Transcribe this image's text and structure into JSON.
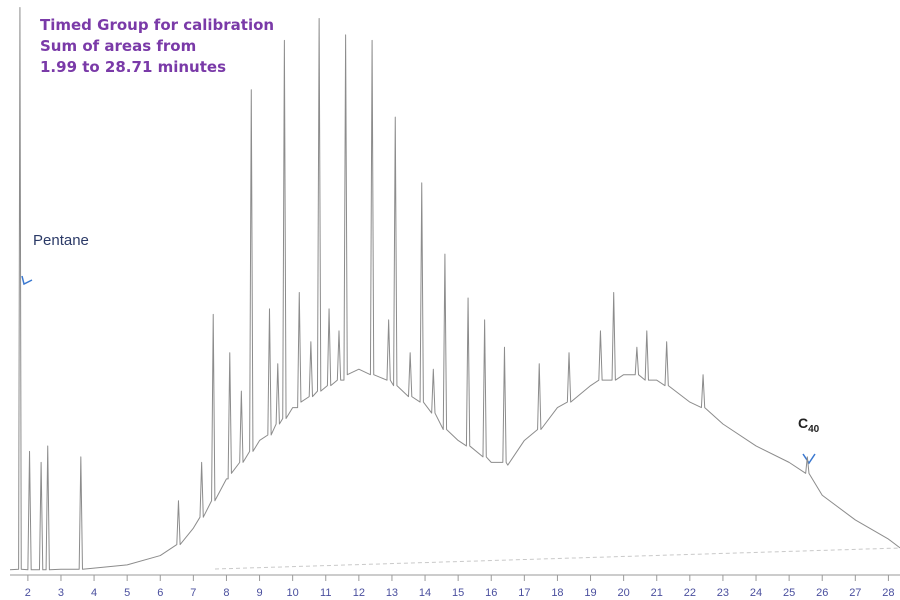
{
  "chart_data": {
    "type": "line",
    "annotations": [
      "Timed Group for calibration",
      "Sum of areas from",
      "1.99 to 28.71 minutes"
    ],
    "peak_labels": [
      "Pentane",
      "C",
      "40"
    ],
    "color": "#8c8c8c",
    "xlim": [
      1.46,
      28.35
    ],
    "ylim": [
      0,
      104
    ],
    "xticks": [
      2,
      3,
      4,
      5,
      6,
      7,
      8,
      9,
      10,
      11,
      12,
      13,
      14,
      15,
      16,
      17,
      18,
      19,
      20,
      21,
      22,
      23,
      24,
      25,
      26,
      27,
      28
    ],
    "x": [
      1.46,
      1.72,
      1.76,
      1.8,
      2.0,
      2.05,
      2.1,
      2.35,
      2.4,
      2.45,
      2.55,
      2.6,
      2.65,
      3.0,
      3.55,
      3.6,
      3.65,
      4,
      5,
      6,
      6.5,
      6.55,
      6.6,
      7,
      7.2,
      7.25,
      7.3,
      7.55,
      7.6,
      7.65,
      8,
      8.05,
      8.1,
      8.15,
      8.4,
      8.45,
      8.5,
      8.7,
      8.75,
      8.8,
      9,
      9.25,
      9.3,
      9.35,
      9.5,
      9.55,
      9.6,
      9.7,
      9.75,
      9.8,
      10,
      10.15,
      10.2,
      10.25,
      10.5,
      10.55,
      10.6,
      10.75,
      10.8,
      10.85,
      11.05,
      11.1,
      11.15,
      11.35,
      11.4,
      11.45,
      11.55,
      11.6,
      11.65,
      12,
      12.35,
      12.4,
      12.45,
      12.85,
      12.9,
      12.95,
      13.05,
      13.1,
      13.15,
      13.5,
      13.55,
      13.6,
      13.85,
      13.9,
      13.95,
      14.2,
      14.25,
      14.3,
      14.55,
      14.6,
      14.65,
      15,
      15.25,
      15.3,
      15.35,
      15.75,
      15.8,
      15.85,
      16,
      16.35,
      16.4,
      16.45,
      16.5,
      17,
      17.4,
      17.45,
      17.5,
      18,
      18.3,
      18.35,
      18.4,
      19,
      19.25,
      19.3,
      19.35,
      19.65,
      19.7,
      19.75,
      20,
      20.35,
      20.4,
      20.45,
      20.65,
      20.7,
      20.75,
      21,
      21.25,
      21.3,
      21.35,
      22,
      22.35,
      22.4,
      22.45,
      23,
      24,
      25,
      25.5,
      25.55,
      25.6,
      26,
      27,
      28,
      28.35
    ],
    "values": [
      0.4,
      0.5,
      103,
      0.5,
      0.4,
      22,
      0.4,
      0.4,
      20,
      0.4,
      0.4,
      23,
      0.4,
      0.5,
      0.5,
      21,
      0.5,
      0.7,
      1.3,
      3,
      5,
      13,
      5,
      8,
      10,
      20,
      10,
      13,
      47,
      13,
      17,
      17,
      40,
      18,
      20,
      33,
      20,
      22,
      88,
      22,
      24,
      25,
      48,
      25,
      27,
      38,
      27,
      28,
      97,
      28,
      30,
      30,
      51,
      31,
      32,
      42,
      32,
      33,
      101,
      33,
      34,
      48,
      34,
      35,
      44,
      35,
      35,
      98,
      36,
      37,
      36,
      97,
      36,
      35,
      46,
      35,
      34,
      83,
      34,
      32,
      40,
      32,
      31,
      71,
      31,
      29,
      37,
      29,
      26,
      58,
      26,
      24,
      23,
      50,
      23,
      21,
      46,
      21,
      20,
      20,
      41,
      20,
      19.5,
      24,
      26,
      38,
      26,
      30,
      31,
      40,
      31,
      34,
      35,
      44,
      35,
      35,
      51,
      35,
      36,
      36,
      41,
      36,
      35,
      44,
      35,
      35,
      34,
      42,
      34,
      31,
      30,
      36,
      30,
      27,
      23,
      20,
      18,
      21,
      18,
      14,
      9.5,
      6,
      4.4
    ]
  }
}
